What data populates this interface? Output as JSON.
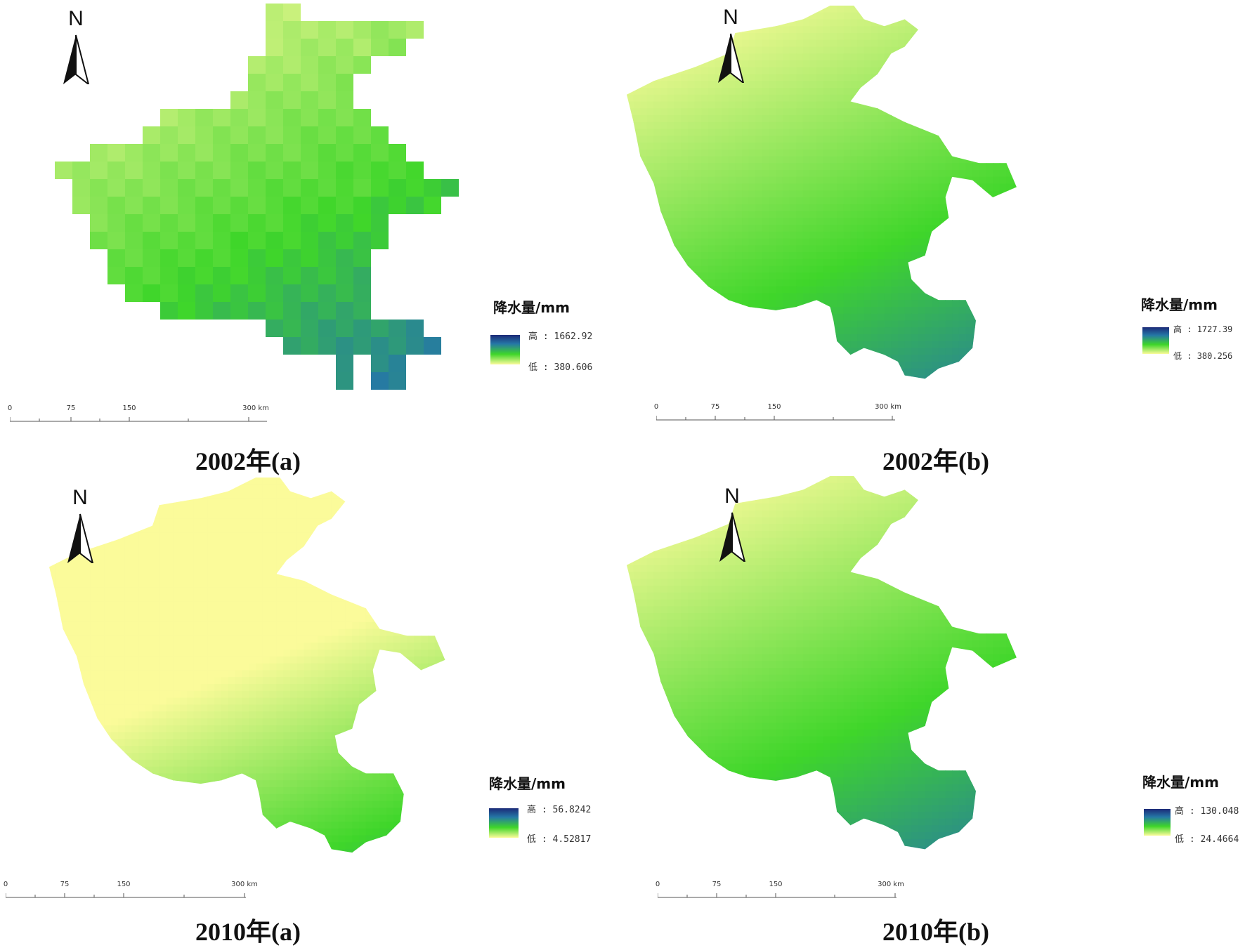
{
  "colors": {
    "high": "#1b2a78",
    "mid_high": "#2577a6",
    "mid": "#3fd62a",
    "low": "#fbfb9a"
  },
  "panels": [
    {
      "caption": "2002年(a)",
      "north_label": "N",
      "legend": {
        "title": "降水量/mm",
        "high_label": "高",
        "high_value": "1662.92",
        "low_label": "低",
        "low_value": "380.606"
      },
      "scale": {
        "ticks": [
          "0",
          "75",
          "150",
          "300 km"
        ]
      },
      "style": "grid"
    },
    {
      "caption": "2002年(b)",
      "north_label": "N",
      "legend": {
        "title": "降水量/mm",
        "high_label": "高",
        "high_value": "1727.39",
        "low_label": "低",
        "low_value": "380.256"
      },
      "scale": {
        "ticks": [
          "0",
          "75",
          "150",
          "300 km"
        ]
      },
      "style": "smooth"
    },
    {
      "caption": "2010年(a)",
      "north_label": "N",
      "legend": {
        "title": "降水量/mm",
        "high_label": "高",
        "high_value": "56.8242",
        "low_label": "低",
        "low_value": "4.52817"
      },
      "scale": {
        "ticks": [
          "0",
          "75",
          "150",
          "300 km"
        ]
      },
      "style": "smooth-dry"
    },
    {
      "caption": "2010年(b)",
      "north_label": "N",
      "legend": {
        "title": "降水量/mm",
        "high_label": "高",
        "high_value": "130.048",
        "low_label": "低",
        "low_value": "24.4664"
      },
      "scale": {
        "ticks": [
          "0",
          "75",
          "150",
          "300 km"
        ]
      },
      "style": "smooth"
    }
  ]
}
